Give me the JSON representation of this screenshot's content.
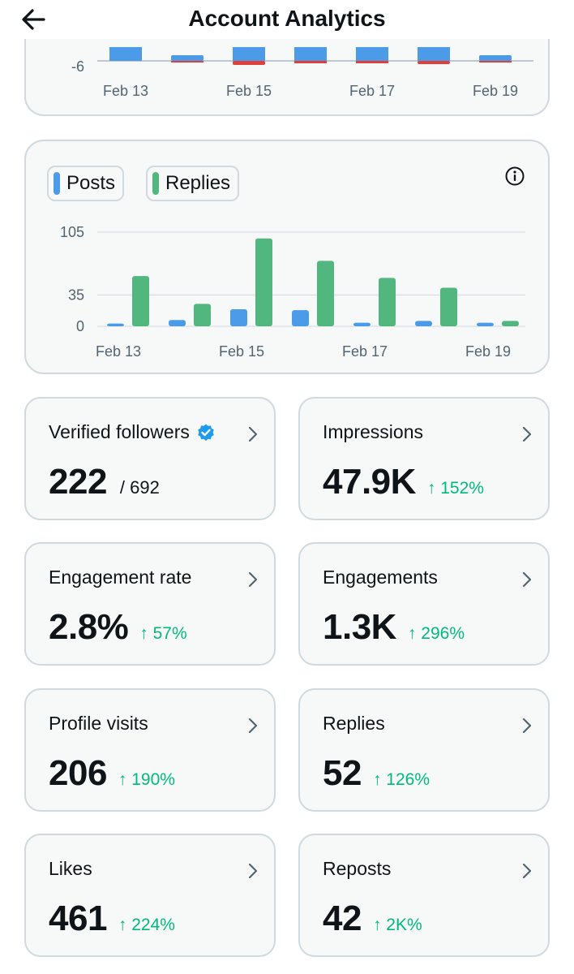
{
  "header": {
    "title": "Account Analytics"
  },
  "top_chart": {
    "y_tick": "-6",
    "x_labels": [
      "Feb 13",
      "Feb 15",
      "Feb 17",
      "Feb 19"
    ],
    "colors": {
      "positive": "#4c9be8",
      "negative": "#e0403a"
    }
  },
  "chart_data": {
    "type": "bar",
    "categories": [
      "Feb 13",
      "Feb 14",
      "Feb 15",
      "Feb 16",
      "Feb 17",
      "Feb 18",
      "Feb 19"
    ],
    "x_tick_labels": [
      "Feb 13",
      "Feb 15",
      "Feb 17",
      "Feb 19"
    ],
    "series": [
      {
        "name": "Posts",
        "color": "#4c9be8",
        "values": [
          3,
          7,
          19,
          18,
          4,
          6,
          4
        ]
      },
      {
        "name": "Replies",
        "color": "#52b77e",
        "values": [
          56,
          25,
          98,
          73,
          54,
          43,
          6
        ]
      }
    ],
    "y_ticks": [
      "105",
      "35",
      "0"
    ],
    "ylim": [
      0,
      105
    ],
    "grid": true,
    "legend": "top-left"
  },
  "legend": {
    "posts": "Posts",
    "replies": "Replies"
  },
  "metrics": [
    {
      "label": "Verified followers",
      "value": "222",
      "sub": "/ 692",
      "change": ""
    },
    {
      "label": "Impressions",
      "value": "47.9K",
      "sub": "",
      "change": "↑ 152%"
    },
    {
      "label": "Engagement rate",
      "value": "2.8%",
      "sub": "",
      "change": "↑ 57%"
    },
    {
      "label": "Engagements",
      "value": "1.3K",
      "sub": "",
      "change": "↑ 296%"
    },
    {
      "label": "Profile visits",
      "value": "206",
      "sub": "",
      "change": "↑ 190%"
    },
    {
      "label": "Replies",
      "value": "52",
      "sub": "",
      "change": "↑ 126%"
    },
    {
      "label": "Likes",
      "value": "461",
      "sub": "",
      "change": "↑ 224%"
    },
    {
      "label": "Reposts",
      "value": "42",
      "sub": "",
      "change": "↑ 2K%"
    }
  ]
}
